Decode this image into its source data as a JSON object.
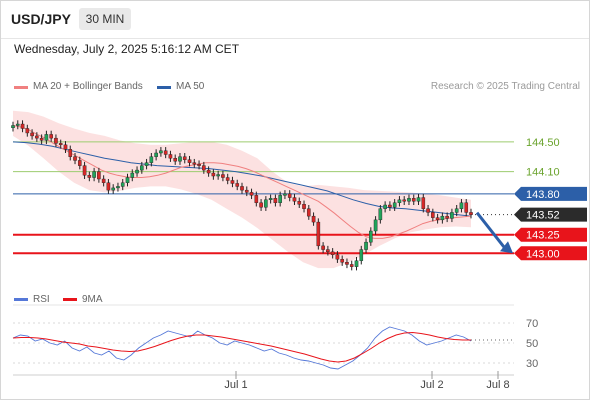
{
  "header": {
    "symbol": "USD/JPY",
    "timeframe": "30 MIN"
  },
  "timestamp": "Wednesday, July 2, 2025 5:16:12 AM CET",
  "legend": {
    "ma20": "MA 20 + Bollinger Bands",
    "ma50": "MA 50",
    "rsi": "RSI",
    "ma9": "9MA"
  },
  "copyright": "Research © 2025 Trading Central",
  "colors": {
    "ma20": "#f08080",
    "band_fill": "#fbdada",
    "ma50": "#2c5fa8",
    "green_level": "#9dcc6f",
    "green_label": "#6aa32c",
    "blue_level": "#2c5fa8",
    "red_level": "#e8141b",
    "up_candle": "#21a35a",
    "down_candle": "#d62828",
    "rsi": "#5578d8",
    "rsi_ma": "#e8141b",
    "arrow": "#2c5fa8"
  },
  "chart_data": {
    "type": "candlestick",
    "ylim": [
      142.6,
      145.05
    ],
    "x_ticks": [
      "Jul 1",
      "Jul 2",
      "Jul 8"
    ],
    "current_price": 143.52,
    "levels": [
      {
        "label": "144.50",
        "value": 144.5,
        "kind": "resistance"
      },
      {
        "label": "144.10",
        "value": 144.1,
        "kind": "resistance"
      },
      {
        "label": "143.80",
        "value": 143.8,
        "kind": "pivot"
      },
      {
        "label": "143.25",
        "value": 143.25,
        "kind": "support"
      },
      {
        "label": "143.00",
        "value": 143.0,
        "kind": "support"
      }
    ],
    "forecast": {
      "from": 143.52,
      "to": 143.0,
      "direction": "down"
    },
    "closes": [
      144.72,
      144.74,
      144.68,
      144.62,
      144.58,
      144.55,
      144.52,
      144.6,
      144.55,
      144.48,
      144.46,
      144.4,
      144.3,
      144.25,
      144.18,
      144.05,
      144.02,
      144.1,
      144.0,
      143.95,
      143.85,
      143.88,
      143.9,
      143.95,
      144.02,
      144.08,
      144.12,
      144.18,
      144.22,
      144.3,
      144.35,
      144.38,
      144.33,
      144.28,
      144.24,
      144.3,
      144.26,
      144.22,
      144.2,
      144.18,
      144.12,
      144.08,
      144.04,
      144.06,
      144.02,
      143.98,
      143.94,
      143.9,
      143.85,
      143.82,
      143.78,
      143.68,
      143.62,
      143.72,
      143.74,
      143.68,
      143.78,
      143.8,
      143.75,
      143.7,
      143.66,
      143.6,
      143.5,
      143.42,
      143.1,
      143.05,
      143.02,
      142.98,
      142.92,
      142.88,
      142.85,
      142.82,
      142.9,
      143.05,
      143.15,
      143.3,
      143.45,
      143.6,
      143.65,
      143.62,
      143.68,
      143.72,
      143.7,
      143.74,
      143.7,
      143.75,
      143.6,
      143.55,
      143.48,
      143.45,
      143.5,
      143.47,
      143.55,
      143.6,
      143.68,
      143.55,
      143.52
    ],
    "ma20": [
      144.72,
      144.7,
      144.66,
      144.6,
      144.55,
      144.48,
      144.42,
      144.36,
      144.3,
      144.24,
      144.18,
      144.12,
      144.08,
      144.05,
      144.03,
      144.02,
      144.02,
      144.03,
      144.05,
      144.08,
      144.12,
      144.16,
      144.18,
      144.2,
      144.22,
      144.22,
      144.21,
      144.19,
      144.17,
      144.14,
      144.1,
      144.05,
      144.0,
      143.95,
      143.9,
      143.85,
      143.8,
      143.75,
      143.7,
      143.62,
      143.54,
      143.45,
      143.36,
      143.28,
      143.22,
      143.2,
      143.2,
      143.22,
      143.26,
      143.3,
      143.35,
      143.4,
      143.43,
      143.45,
      143.47,
      143.48,
      143.49,
      143.5
    ],
    "ma50": [
      144.5,
      144.49,
      144.47,
      144.44,
      144.4,
      144.36,
      144.32,
      144.28,
      144.25,
      144.22,
      144.2,
      144.18,
      144.17,
      144.16,
      144.15,
      144.14,
      144.12,
      144.1,
      144.07,
      144.04,
      144.0,
      143.96,
      143.92,
      143.88,
      143.84,
      143.78,
      143.72,
      143.67,
      143.63,
      143.61,
      143.6,
      143.58,
      143.56,
      143.54,
      143.52,
      143.5
    ],
    "bb_upper": [
      144.92,
      144.9,
      144.84,
      144.75,
      144.68,
      144.62,
      144.58,
      144.52,
      144.48,
      144.46,
      144.46,
      144.48,
      144.5,
      144.5,
      144.46,
      144.38,
      144.28,
      144.1,
      143.95,
      143.9,
      143.92,
      143.9,
      143.88,
      143.85,
      143.84,
      143.83,
      143.82,
      143.8,
      143.78,
      143.75,
      143.72
    ],
    "bb_lower": [
      144.58,
      144.45,
      144.28,
      144.1,
      143.95,
      143.85,
      143.82,
      143.84,
      143.88,
      143.9,
      143.9,
      143.86,
      143.8,
      143.72,
      143.6,
      143.48,
      143.34,
      143.18,
      143.02,
      142.88,
      142.8,
      142.8,
      142.88,
      142.98,
      143.1,
      143.2,
      143.28,
      143.32,
      143.35,
      143.36,
      143.35
    ],
    "rsi": {
      "ticks": [
        "70",
        "50",
        "30"
      ],
      "ylim": [
        20,
        80
      ],
      "values": [
        55,
        58,
        57,
        52,
        54,
        50,
        48,
        52,
        45,
        42,
        46,
        40,
        38,
        42,
        35,
        33,
        38,
        45,
        50,
        55,
        58,
        62,
        60,
        58,
        56,
        62,
        58,
        55,
        50,
        48,
        52,
        50,
        48,
        45,
        42,
        44,
        40,
        38,
        35,
        33,
        32,
        30,
        28,
        25,
        24,
        28,
        32,
        38,
        45,
        55,
        62,
        66,
        64,
        62,
        58,
        52,
        48,
        50,
        52,
        55,
        58,
        56,
        52
      ],
      "ma9": [
        55,
        55.5,
        55.5,
        55,
        54,
        52.5,
        51,
        50,
        49,
        47,
        46,
        44.5,
        43,
        42,
        41.5,
        42,
        44,
        46.5,
        49.5,
        52.5,
        55,
        57,
        58,
        58,
        57,
        56,
        54.5,
        53,
        51.5,
        50,
        48.5,
        47,
        45,
        43,
        41,
        39,
        36.5,
        34,
        32,
        31,
        32,
        35,
        39.5,
        44.5,
        50,
        54.5,
        58,
        60,
        60.5,
        59.5,
        58,
        56,
        54.5,
        53.5,
        53,
        53
      ]
    }
  }
}
